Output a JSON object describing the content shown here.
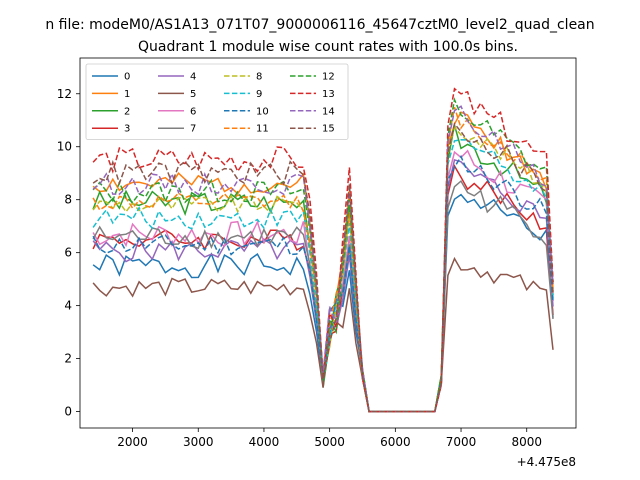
{
  "chart_data": {
    "type": "line",
    "suptitle": "n file: modeM0/AS1A13_071T07_9000006116_45647cztM0_level2_quad_clean",
    "title": "Quadrant 1 module wise count rates with 100.0s bins.",
    "xlabel": "",
    "ylabel": "",
    "x_offset_label": "+4.475e8",
    "xlim": [
      1200,
      8750
    ],
    "ylim": [
      -0.62,
      13.35
    ],
    "xticks": [
      2000,
      3000,
      4000,
      5000,
      6000,
      7000,
      8000
    ],
    "xtick_labels": [
      "2000",
      "3000",
      "4000",
      "5000",
      "6000",
      "7000",
      "8000"
    ],
    "yticks": [
      0,
      2,
      4,
      6,
      8,
      10,
      12
    ],
    "ytick_labels": [
      "0",
      "2",
      "4",
      "6",
      "8",
      "10",
      "12"
    ],
    "grid": false,
    "legend_position": "top-left",
    "legend_columns": 4,
    "x_start": 1400,
    "x_step": 100,
    "series": [
      {
        "name": "0",
        "color": "#1f77b4",
        "dash": "solid",
        "level": 5.5,
        "post": 8.3,
        "amp": 0.45,
        "seed": 1
      },
      {
        "name": "1",
        "color": "#ff7f0e",
        "dash": "solid",
        "level": 8.6,
        "post": 11.2,
        "amp": 0.4,
        "seed": 2
      },
      {
        "name": "2",
        "color": "#2ca02c",
        "dash": "solid",
        "level": 7.9,
        "post": 10.4,
        "amp": 0.45,
        "seed": 3
      },
      {
        "name": "3",
        "color": "#d62728",
        "dash": "solid",
        "level": 6.5,
        "post": 9.0,
        "amp": 0.4,
        "seed": 4
      },
      {
        "name": "4",
        "color": "#9467bd",
        "dash": "solid",
        "level": 6.1,
        "post": 9.3,
        "amp": 0.45,
        "seed": 5
      },
      {
        "name": "5",
        "color": "#8c564b",
        "dash": "solid",
        "level": 4.7,
        "post": 5.7,
        "amp": 0.35,
        "seed": 6
      },
      {
        "name": "6",
        "color": "#e377c2",
        "dash": "solid",
        "level": 6.7,
        "post": 9.8,
        "amp": 0.5,
        "seed": 7
      },
      {
        "name": "7",
        "color": "#7f7f7f",
        "dash": "solid",
        "level": 6.6,
        "post": 8.6,
        "amp": 0.45,
        "seed": 8
      },
      {
        "name": "8",
        "color": "#bcbd22",
        "dash": "dashed",
        "level": 7.8,
        "post": 10.9,
        "amp": 0.35,
        "seed": 9
      },
      {
        "name": "9",
        "color": "#17becf",
        "dash": "dashed",
        "level": 7.3,
        "post": 10.5,
        "amp": 0.4,
        "seed": 10
      },
      {
        "name": "10",
        "color": "#1f77b4",
        "dash": "dashed",
        "level": 6.3,
        "post": 9.6,
        "amp": 0.4,
        "seed": 11
      },
      {
        "name": "11",
        "color": "#ff7f0e",
        "dash": "dashed",
        "level": 7.9,
        "post": 11.2,
        "amp": 0.35,
        "seed": 12
      },
      {
        "name": "12",
        "color": "#2ca02c",
        "dash": "dashed",
        "level": 8.3,
        "post": 11.5,
        "amp": 0.45,
        "seed": 13
      },
      {
        "name": "13",
        "color": "#d62728",
        "dash": "dashed",
        "level": 9.5,
        "post": 12.0,
        "amp": 0.5,
        "seed": 14
      },
      {
        "name": "14",
        "color": "#9467bd",
        "dash": "dashed",
        "level": 8.6,
        "post": 11.3,
        "amp": 0.4,
        "seed": 15
      },
      {
        "name": "15",
        "color": "#8c564b",
        "dash": "dashed",
        "level": 9.0,
        "post": 10.9,
        "amp": 0.45,
        "seed": 16
      }
    ]
  }
}
